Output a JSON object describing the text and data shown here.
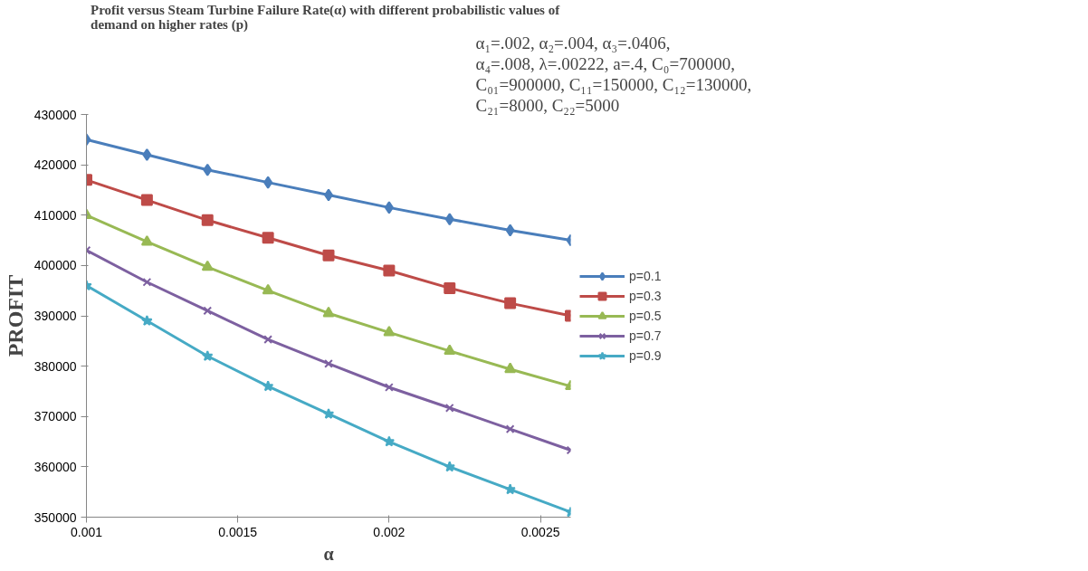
{
  "chart_data": {
    "type": "line",
    "title": "Profit versus Steam Turbine  Failure Rate(α) with different  probabilistic values of demand on higher rates (p)",
    "xlabel": "α",
    "ylabel": "PROFIT",
    "annotations": [
      "α₁=.002, α₂=.004, α₃=.0406,",
      "α₄=.008, λ=.00222, a=.4, C₀=700000,",
      "C₀₁=900000, C₁₁=150000, C₁₂=130000,",
      "C₂₁=8000, C₂₂=5000"
    ],
    "x": [
      0.001,
      0.0012,
      0.0014,
      0.0016,
      0.0018,
      0.002,
      0.0022,
      0.0024,
      0.0026
    ],
    "xlim": [
      0.001,
      0.0026
    ],
    "xticks": [
      0.001,
      0.0015,
      0.002,
      0.0025
    ],
    "ylim": [
      350000,
      430000
    ],
    "yticks": [
      350000,
      360000,
      370000,
      380000,
      390000,
      400000,
      410000,
      420000,
      430000
    ],
    "grid": false,
    "legend": "right",
    "series": [
      {
        "name": "p=0.1",
        "color": "#4a7ebb",
        "marker": "diamond",
        "values": [
          425000,
          422000,
          419000,
          416500,
          414000,
          411500,
          409200,
          407000,
          405000
        ]
      },
      {
        "name": "p=0.3",
        "color": "#be4b48",
        "marker": "square",
        "values": [
          417000,
          413000,
          409000,
          405500,
          402000,
          399000,
          395500,
          392500,
          390000
        ]
      },
      {
        "name": "p=0.5",
        "color": "#98b954",
        "marker": "triangle",
        "values": [
          410000,
          404700,
          399700,
          395000,
          390500,
          386700,
          383000,
          379400,
          376000
        ]
      },
      {
        "name": "p=0.7",
        "color": "#7d60a0",
        "marker": "cross",
        "values": [
          403000,
          396700,
          391000,
          385300,
          380500,
          375800,
          371700,
          367500,
          363300
        ]
      },
      {
        "name": "p=0.9",
        "color": "#46aac5",
        "marker": "star",
        "values": [
          396000,
          389000,
          382000,
          376000,
          370500,
          365000,
          360000,
          355500,
          351000
        ]
      }
    ]
  }
}
